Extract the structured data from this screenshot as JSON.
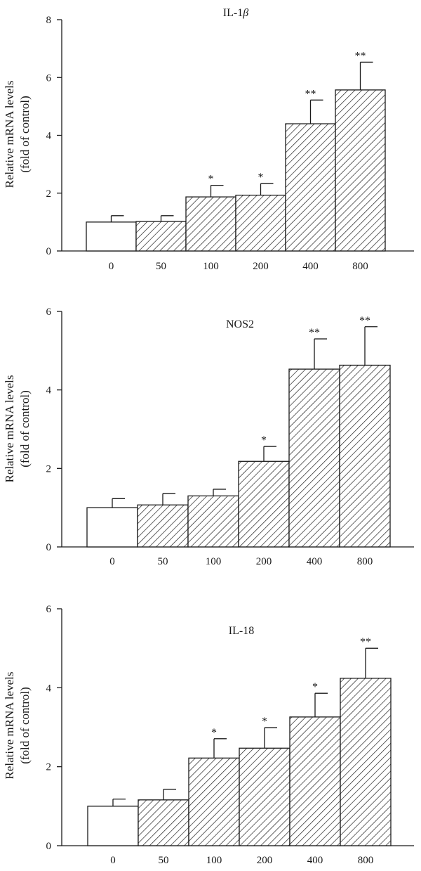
{
  "figure": {
    "ylabel_line1": "Relative mRNA levels",
    "ylabel_line2": "(fold of control)"
  },
  "chart_data": [
    {
      "type": "bar",
      "title": "IL-1β",
      "title_prefix": "IL-1",
      "title_greek": "β",
      "xlabel": "",
      "ylabel": "Relative mRNA levels (fold of control)",
      "categories": [
        "0",
        "50",
        "100",
        "200",
        "400",
        "800"
      ],
      "values": [
        1.0,
        1.02,
        1.87,
        1.93,
        4.4,
        5.57
      ],
      "errors": [
        0.22,
        0.2,
        0.4,
        0.4,
        0.82,
        0.96
      ],
      "significance": [
        "",
        "",
        "*",
        "*",
        "**",
        "**"
      ],
      "fill": [
        "open",
        "hatched",
        "hatched",
        "hatched",
        "hatched",
        "hatched"
      ],
      "ylim": [
        0,
        8
      ],
      "yticks": [
        0,
        2,
        4,
        6,
        8
      ]
    },
    {
      "type": "bar",
      "title": "NOS2",
      "xlabel": "",
      "ylabel": "Relative mRNA levels (fold of control)",
      "categories": [
        "0",
        "50",
        "100",
        "200",
        "400",
        "800"
      ],
      "values": [
        1.0,
        1.07,
        1.3,
        2.18,
        4.53,
        4.63
      ],
      "errors": [
        0.23,
        0.29,
        0.17,
        0.38,
        0.77,
        0.98
      ],
      "significance": [
        "",
        "",
        "",
        "*",
        "**",
        "**"
      ],
      "fill": [
        "open",
        "hatched",
        "hatched",
        "hatched",
        "hatched",
        "hatched"
      ],
      "ylim": [
        0,
        6
      ],
      "yticks": [
        0,
        2,
        4,
        6
      ]
    },
    {
      "type": "bar",
      "title": "IL-18",
      "xlabel": "",
      "ylabel": "Relative mRNA levels (fold of control)",
      "categories": [
        "0",
        "50",
        "100",
        "200",
        "400",
        "800"
      ],
      "values": [
        1.0,
        1.16,
        2.22,
        2.47,
        3.26,
        4.24
      ],
      "errors": [
        0.18,
        0.27,
        0.49,
        0.52,
        0.6,
        0.76
      ],
      "significance": [
        "",
        "",
        "*",
        "*",
        "*",
        "**"
      ],
      "fill": [
        "open",
        "hatched",
        "hatched",
        "hatched",
        "hatched",
        "hatched"
      ],
      "ylim": [
        0,
        6
      ],
      "yticks": [
        0,
        2,
        4,
        6
      ]
    }
  ]
}
